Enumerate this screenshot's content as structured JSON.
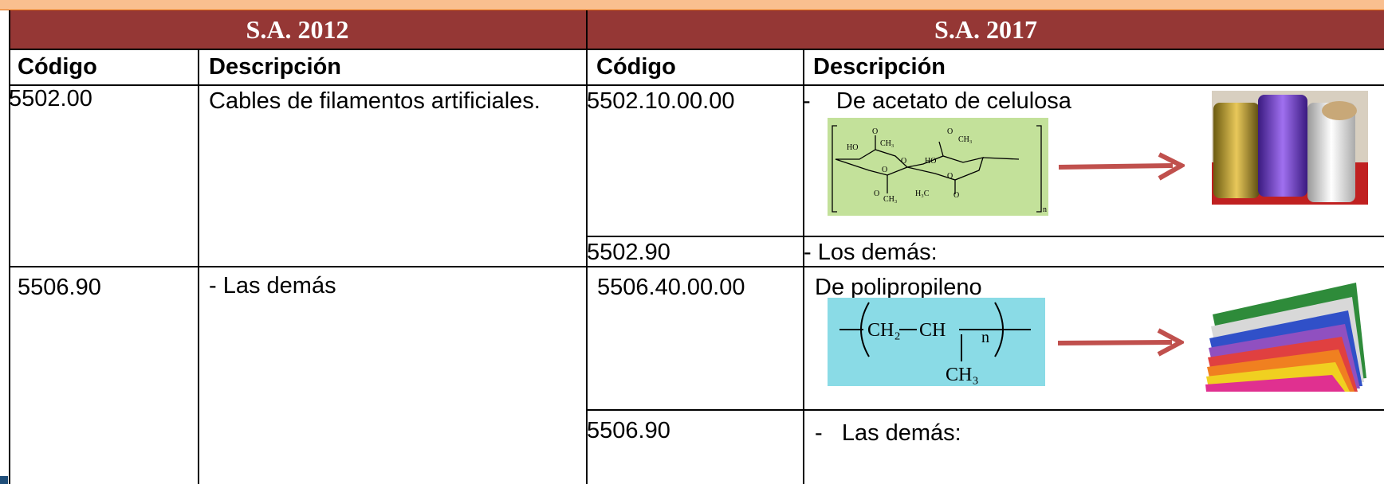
{
  "header": {
    "left": "S.A. 2012",
    "right": "S.A. 2017"
  },
  "columns": [
    "Código",
    "Descripción",
    "Código",
    "Descripción"
  ],
  "rows": [
    {
      "code_2012": "5502.00",
      "desc_2012": "Cables de filamentos artificiales.",
      "items": [
        {
          "code": "5502.10.00.00",
          "desc": "-    De acetato de celulosa"
        },
        {
          "code": "5502.90",
          "desc": "- Los demás:"
        }
      ]
    },
    {
      "code_2012": "5506.90",
      "desc_2012": "- Las demás",
      "items": [
        {
          "code": "5506.40.00.00",
          "desc": "De polipropileno"
        },
        {
          "code": "5506.90",
          "desc": "-   Las demás:"
        }
      ]
    }
  ],
  "figures": {
    "acetate": [
      "O",
      "CH₃",
      "O",
      "CH₃",
      "HO",
      "O",
      "HO",
      "O",
      "O",
      "O",
      "CH₃",
      "H₃C",
      "O",
      "n"
    ],
    "polypropylene": [
      "CH₂",
      "CH",
      "n",
      "CH₃"
    ]
  }
}
